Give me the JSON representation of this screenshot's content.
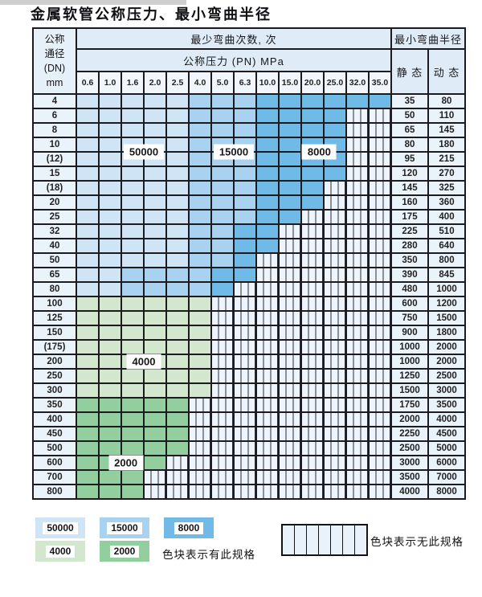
{
  "title": "金属软管公称压力、最小弯曲半径",
  "header": {
    "dn_label_lines": [
      "公称",
      "通径",
      "(DN)",
      "mm"
    ],
    "min_bend_cycles": "最少弯曲次数, 次",
    "nominal_pressure": "公称压力 (PN) MPa",
    "min_bend_radius": "最小弯曲半径",
    "static_label": "静 态",
    "dynamic_label": "动 态",
    "pressure_columns": [
      "0.6",
      "1.0",
      "1.6",
      "2.0",
      "2.5",
      "4.0",
      "5.0",
      "6.3",
      "10.0",
      "15.0",
      "20.0",
      "25.0",
      "32.0",
      "35.0"
    ]
  },
  "band_colors": {
    "A": "#cfe4f5",
    "B": "#a8d2ef",
    "C": "#6fbae7",
    "D": "#d3e7cf",
    "E": "#93ce9f"
  },
  "band_values": {
    "A": "50000",
    "B": "15000",
    "C": "8000",
    "D": "4000",
    "E": "2000"
  },
  "rows": [
    {
      "dn": "4",
      "cells": "AAAAABBBCCCCCC",
      "static": "35",
      "dynamic": "80"
    },
    {
      "dn": "6",
      "cells": "AAAAABBBCCCC..",
      "static": "50",
      "dynamic": "110"
    },
    {
      "dn": "8",
      "cells": "AAAAABBBCCCC..",
      "static": "65",
      "dynamic": "145"
    },
    {
      "dn": "10",
      "cells": "AAAAABBBCCCC..",
      "static": "80",
      "dynamic": "180"
    },
    {
      "dn": "(12)",
      "cells": "AAAAABBBCCCC..",
      "static": "95",
      "dynamic": "215"
    },
    {
      "dn": "15",
      "cells": "AAAAABBBCCCC..",
      "static": "120",
      "dynamic": "270"
    },
    {
      "dn": "(18)",
      "cells": "AAAAABBBCCC...",
      "static": "145",
      "dynamic": "325"
    },
    {
      "dn": "20",
      "cells": "AAAAABBBCCC...",
      "static": "160",
      "dynamic": "360"
    },
    {
      "dn": "25",
      "cells": "AAAAABBBCC....",
      "static": "175",
      "dynamic": "400"
    },
    {
      "dn": "32",
      "cells": "AAAAABBCC.....",
      "static": "225",
      "dynamic": "510"
    },
    {
      "dn": "40",
      "cells": "AAAAABBCC.....",
      "static": "280",
      "dynamic": "640"
    },
    {
      "dn": "50",
      "cells": "AAAAABBC......",
      "static": "350",
      "dynamic": "800"
    },
    {
      "dn": "65",
      "cells": "AABBBBCC......",
      "static": "390",
      "dynamic": "845"
    },
    {
      "dn": "80",
      "cells": "AABBBBC.......",
      "static": "480",
      "dynamic": "1000"
    },
    {
      "dn": "100",
      "cells": "DDDDDD........",
      "static": "600",
      "dynamic": "1200"
    },
    {
      "dn": "125",
      "cells": "DDDDDD........",
      "static": "750",
      "dynamic": "1500"
    },
    {
      "dn": "150",
      "cells": "DDDDDD........",
      "static": "900",
      "dynamic": "1800"
    },
    {
      "dn": "(175)",
      "cells": "DDDDDD........",
      "static": "1000",
      "dynamic": "2000"
    },
    {
      "dn": "200",
      "cells": "DDDDDD........",
      "static": "1000",
      "dynamic": "2000"
    },
    {
      "dn": "250",
      "cells": "DDDDDD........",
      "static": "1250",
      "dynamic": "2500"
    },
    {
      "dn": "300",
      "cells": "DDDDDD........",
      "static": "1500",
      "dynamic": "3000"
    },
    {
      "dn": "350",
      "cells": "EEEEE.........",
      "static": "1750",
      "dynamic": "3500"
    },
    {
      "dn": "400",
      "cells": "EEEEE.........",
      "static": "2000",
      "dynamic": "4000"
    },
    {
      "dn": "450",
      "cells": "EEEEE.........",
      "static": "2250",
      "dynamic": "4500"
    },
    {
      "dn": "500",
      "cells": "EEEEE.........",
      "static": "2500",
      "dynamic": "5000"
    },
    {
      "dn": "600",
      "cells": "EEEE..........",
      "static": "3000",
      "dynamic": "6000"
    },
    {
      "dn": "700",
      "cells": "EEE...........",
      "static": "3500",
      "dynamic": "7000"
    },
    {
      "dn": "800",
      "cells": "EEE...........",
      "static": "4000",
      "dynamic": "8000"
    }
  ],
  "overlay_labels": [
    {
      "text": "50000",
      "col": 2.5,
      "row": 3.5
    },
    {
      "text": "15000",
      "col": 6.5,
      "row": 3.5
    },
    {
      "text": "8000",
      "col": 10.3,
      "row": 3.5
    },
    {
      "text": "4000",
      "col": 2.5,
      "row": 18
    },
    {
      "text": "2000",
      "col": 1.7,
      "row": 25
    }
  ],
  "legend": {
    "items": [
      {
        "value": "50000",
        "band": "A"
      },
      {
        "value": "15000",
        "band": "B"
      },
      {
        "value": "8000",
        "band": "C"
      },
      {
        "value": "4000",
        "band": "D"
      },
      {
        "value": "2000",
        "band": "E"
      }
    ],
    "has_spec_text": "色块表示有此规格",
    "no_spec_text": "色块表示无此规格"
  }
}
